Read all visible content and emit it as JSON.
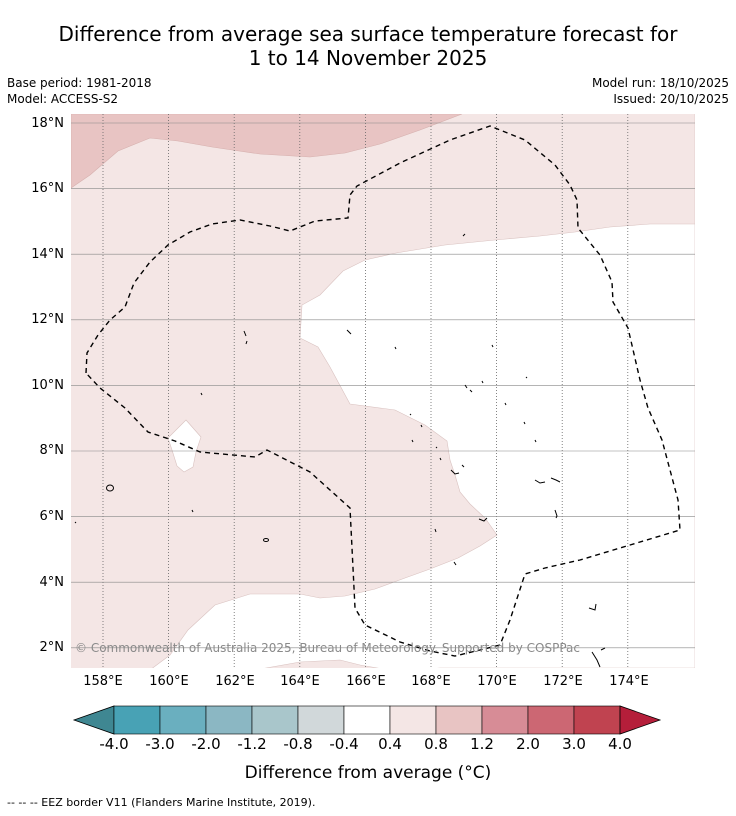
{
  "title": {
    "line1": "Difference from average sea surface temperature forecast for",
    "line2": "1 to 14 November 2025"
  },
  "meta": {
    "base_period": "Base period: 1981-2018",
    "model": "Model: ACCESS-S2",
    "model_run": "Model run: 18/10/2025",
    "issued": "Issued: 20/10/2025"
  },
  "map": {
    "lat_labels": [
      "18°N",
      "16°N",
      "14°N",
      "12°N",
      "10°N",
      "8°N",
      "6°N",
      "4°N",
      "2°N"
    ],
    "lon_labels": [
      "158°E",
      "160°E",
      "162°E",
      "164°E",
      "166°E",
      "168°E",
      "170°E",
      "172°E",
      "174°E"
    ],
    "lat_range": [
      1.4,
      18.2
    ],
    "lon_range": [
      157.0,
      175.9
    ],
    "copyright": "© Commonwealth of Australia 2025, Bureau of Meteorology. Supported by COSPPac",
    "regions": [
      {
        "name": "0.8 to 1.2 °C",
        "color": "#e8c4c3"
      },
      {
        "name": "0.4 to 0.8 °C",
        "color": "#f4e6e5"
      },
      {
        "name": "-0.4 to 0.4 °C",
        "color": "#ffffff"
      }
    ],
    "eez_border": "dashed"
  },
  "colorbar": {
    "labels": [
      "-4.0",
      "-3.0",
      "-2.0",
      "-1.2",
      "-0.8",
      "-0.4",
      "0.4",
      "0.8",
      "1.2",
      "2.0",
      "3.0",
      "4.0"
    ],
    "colors": [
      "#3f8792",
      "#48a2b5",
      "#6aafbf",
      "#8bb7c3",
      "#a9c6cb",
      "#d1d8da",
      "#ffffff",
      "#f4e6e5",
      "#e8c4c3",
      "#d78c96",
      "#cc6773",
      "#c04350",
      "#b51e3a"
    ],
    "title": "Difference from average ($^\\circ$C)",
    "title_display": "Difference from average (°C)"
  },
  "legend": {
    "eez_note": "--  --  -- EEZ border V11 (Flanders Marine Institute, 2019)."
  }
}
